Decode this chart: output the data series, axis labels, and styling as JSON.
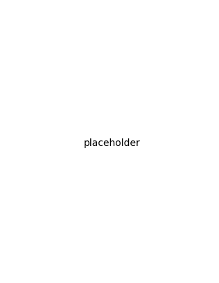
{
  "background": "#ffffff",
  "line_color": "#1a1a1a",
  "line_width": 1.5,
  "fig_width": 3.16,
  "fig_height": 4.1,
  "dpi": 100
}
